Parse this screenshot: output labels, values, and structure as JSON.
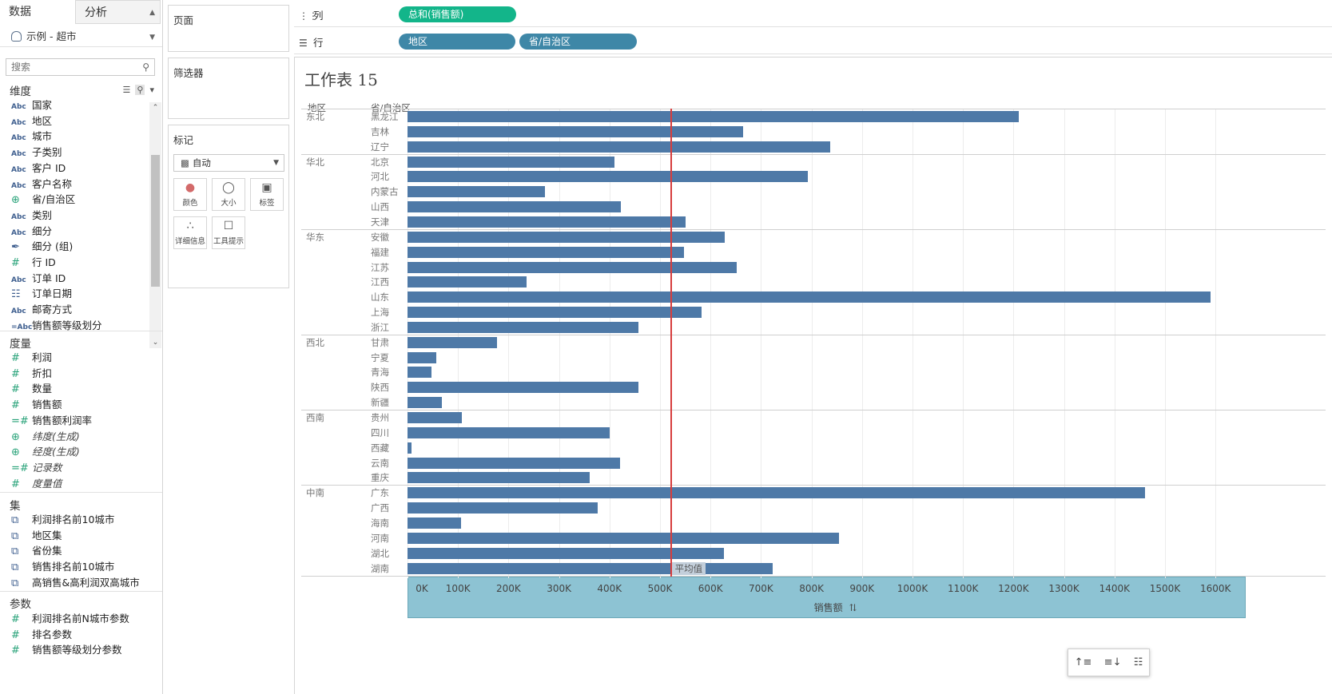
{
  "left_pane": {
    "tabs": [
      "数据",
      "分析"
    ],
    "data_source": "示例 - 超市",
    "search_placeholder": "搜索",
    "dimensions_title": "维度",
    "dimensions": [
      {
        "icon": "Abc",
        "label": "国家"
      },
      {
        "icon": "Abc",
        "label": "地区"
      },
      {
        "icon": "Abc",
        "label": "城市"
      },
      {
        "icon": "Abc",
        "label": "子类别"
      },
      {
        "icon": "Abc",
        "label": "客户 ID"
      },
      {
        "icon": "Abc",
        "label": "客户名称"
      },
      {
        "icon": "globe",
        "label": "省/自治区"
      },
      {
        "icon": "Abc",
        "label": "类别"
      },
      {
        "icon": "Abc",
        "label": "细分"
      },
      {
        "icon": "clip",
        "label": "细分 (组)"
      },
      {
        "icon": "#",
        "label": "行 ID"
      },
      {
        "icon": "Abc",
        "label": "订单 ID"
      },
      {
        "icon": "calendar",
        "label": "订单日期"
      },
      {
        "icon": "Abc",
        "label": "邮寄方式"
      },
      {
        "icon": "=Abc",
        "label": "销售额等级划分"
      }
    ],
    "measures_title": "度量",
    "measures": [
      {
        "icon": "#",
        "label": "利润",
        "italic": false
      },
      {
        "icon": "#",
        "label": "折扣",
        "italic": false
      },
      {
        "icon": "#",
        "label": "数量",
        "italic": false
      },
      {
        "icon": "#",
        "label": "销售额",
        "italic": false
      },
      {
        "icon": "=#",
        "label": "销售额利润率",
        "italic": false
      },
      {
        "icon": "globe",
        "label": "纬度(生成)",
        "italic": true
      },
      {
        "icon": "globe",
        "label": "经度(生成)",
        "italic": true
      },
      {
        "icon": "=#",
        "label": "记录数",
        "italic": true
      },
      {
        "icon": "#",
        "label": "度量值",
        "italic": true
      }
    ],
    "sets_title": "集",
    "sets": [
      "利润排名前10城市",
      "地区集",
      "省份集",
      "销售排名前10城市",
      "高销售&高利润双高城市"
    ],
    "params_title": "参数",
    "params": [
      "利润排名前N城市参数",
      "排名参数",
      "销售额等级划分参数"
    ]
  },
  "cards": {
    "pages": "页面",
    "filters": "筛选器",
    "marks": "标记",
    "mark_type": "自动",
    "mark_buttons": [
      "颜色",
      "大小",
      "标签",
      "详细信息",
      "工具提示"
    ]
  },
  "shelves": {
    "columns_label": "列",
    "rows_label": "行",
    "columns_pill": "总和(销售额)",
    "rows_pills": [
      "地区",
      "省/自治区"
    ]
  },
  "sheet": {
    "title": "工作表 15",
    "header_region": "地区",
    "header_province": "省/自治区",
    "avg_label": "平均值",
    "axis_title": "销售额"
  },
  "chart_data": {
    "type": "bar",
    "orientation": "horizontal",
    "xlabel": "销售额",
    "xlim": [
      0,
      1650000
    ],
    "x_ticks": [
      0,
      100000,
      200000,
      300000,
      400000,
      500000,
      600000,
      700000,
      800000,
      900000,
      1000000,
      1100000,
      1200000,
      1300000,
      1400000,
      1500000,
      1600000
    ],
    "x_tick_labels": [
      "0K",
      "100K",
      "200K",
      "300K",
      "400K",
      "500K",
      "600K",
      "700K",
      "800K",
      "900K",
      "1000K",
      "1100K",
      "1200K",
      "1300K",
      "1400K",
      "1500K",
      "1600K"
    ],
    "reference_line": {
      "label": "平均值",
      "value": 520000,
      "color": "#d73d3d"
    },
    "bar_color": "#4e79a7",
    "groups": [
      {
        "region": "东北",
        "rows": [
          {
            "province": "黑龙江",
            "value": 1210000
          },
          {
            "province": "吉林",
            "value": 665000
          },
          {
            "province": "辽宁",
            "value": 837000
          }
        ]
      },
      {
        "region": "华北",
        "rows": [
          {
            "province": "北京",
            "value": 410000
          },
          {
            "province": "河北",
            "value": 792000
          },
          {
            "province": "内蒙古",
            "value": 272000
          },
          {
            "province": "山西",
            "value": 423000
          },
          {
            "province": "天津",
            "value": 550000
          }
        ]
      },
      {
        "region": "华东",
        "rows": [
          {
            "province": "安徽",
            "value": 628000
          },
          {
            "province": "福建",
            "value": 547000
          },
          {
            "province": "江苏",
            "value": 652000
          },
          {
            "province": "江西",
            "value": 236000
          },
          {
            "province": "山东",
            "value": 1590000
          },
          {
            "province": "上海",
            "value": 582000
          },
          {
            "province": "浙江",
            "value": 458000
          }
        ]
      },
      {
        "region": "西北",
        "rows": [
          {
            "province": "甘肃",
            "value": 178000
          },
          {
            "province": "宁夏",
            "value": 57000
          },
          {
            "province": "青海",
            "value": 48000
          },
          {
            "province": "陕西",
            "value": 458000
          },
          {
            "province": "新疆",
            "value": 68000
          }
        ]
      },
      {
        "region": "西南",
        "rows": [
          {
            "province": "贵州",
            "value": 107000
          },
          {
            "province": "四川",
            "value": 400000
          },
          {
            "province": "西藏",
            "value": 8000
          },
          {
            "province": "云南",
            "value": 421000
          },
          {
            "province": "重庆",
            "value": 361000
          }
        ]
      },
      {
        "region": "中南",
        "rows": [
          {
            "province": "广东",
            "value": 1460000
          },
          {
            "province": "广西",
            "value": 376000
          },
          {
            "province": "海南",
            "value": 106000
          },
          {
            "province": "河南",
            "value": 855000
          },
          {
            "province": "湖北",
            "value": 627000
          },
          {
            "province": "湖南",
            "value": 723000
          }
        ]
      }
    ]
  }
}
